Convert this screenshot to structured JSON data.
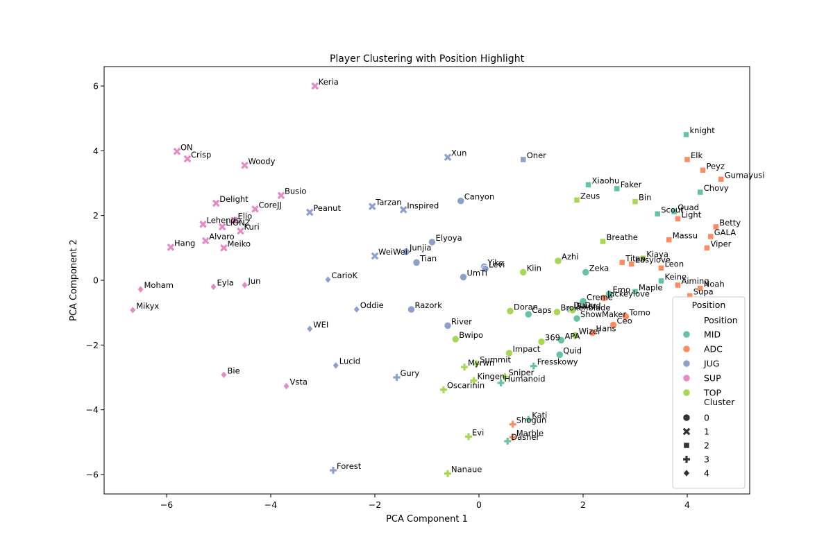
{
  "chart_data": {
    "type": "scatter",
    "title": "Player Clustering with Position Highlight",
    "xlabel": "PCA Component 1",
    "ylabel": "PCA Component 2",
    "xlim": [
      -7.2,
      5.2
    ],
    "ylim": [
      -6.6,
      6.6
    ],
    "xticks": [
      -6,
      -4,
      -2,
      0,
      2,
      4
    ],
    "yticks": [
      -6,
      -4,
      -2,
      0,
      2,
      4,
      6
    ],
    "grid": false,
    "legend_placement": "lower-right",
    "legend": {
      "hue_title": "Position",
      "hue": [
        {
          "label": "MID",
          "color": "#66c2a5"
        },
        {
          "label": "ADC",
          "color": "#fc8d62"
        },
        {
          "label": "JUG",
          "color": "#8da0cb"
        },
        {
          "label": "SUP",
          "color": "#e78ac3"
        },
        {
          "label": "TOP",
          "color": "#a6d854"
        }
      ],
      "style_title": "Cluster",
      "style": [
        {
          "label": "0",
          "marker": "circle"
        },
        {
          "label": "1",
          "marker": "x"
        },
        {
          "label": "2",
          "marker": "square"
        },
        {
          "label": "3",
          "marker": "plus"
        },
        {
          "label": "4",
          "marker": "diamond"
        }
      ]
    },
    "points": [
      {
        "name": "Keria",
        "x": -3.15,
        "y": 6.0,
        "position": "SUP",
        "cluster": "1"
      },
      {
        "name": "ON",
        "x": -5.8,
        "y": 3.98,
        "position": "SUP",
        "cluster": "1"
      },
      {
        "name": "Crisp",
        "x": -5.6,
        "y": 3.75,
        "position": "SUP",
        "cluster": "1"
      },
      {
        "name": "Woody",
        "x": -4.5,
        "y": 3.55,
        "position": "SUP",
        "cluster": "1"
      },
      {
        "name": "Busio",
        "x": -3.8,
        "y": 2.62,
        "position": "SUP",
        "cluster": "1"
      },
      {
        "name": "Delight",
        "x": -5.05,
        "y": 2.38,
        "position": "SUP",
        "cluster": "1"
      },
      {
        "name": "CoreJJ",
        "x": -4.3,
        "y": 2.2,
        "position": "SUP",
        "cluster": "1"
      },
      {
        "name": "Elio",
        "x": -4.7,
        "y": 1.85,
        "position": "SUP",
        "cluster": "1"
      },
      {
        "name": "Lehends",
        "x": -5.3,
        "y": 1.73,
        "position": "SUP",
        "cluster": "1"
      },
      {
        "name": "LIONZ",
        "x": -4.93,
        "y": 1.65,
        "position": "SUP",
        "cluster": "1"
      },
      {
        "name": "Kuri",
        "x": -4.58,
        "y": 1.52,
        "position": "SUP",
        "cluster": "1"
      },
      {
        "name": "Alvaro",
        "x": -5.25,
        "y": 1.22,
        "position": "SUP",
        "cluster": "1"
      },
      {
        "name": "Hang",
        "x": -5.92,
        "y": 1.02,
        "position": "SUP",
        "cluster": "1"
      },
      {
        "name": "Meiko",
        "x": -4.9,
        "y": 1.0,
        "position": "SUP",
        "cluster": "1"
      },
      {
        "name": "Moham",
        "x": -6.5,
        "y": -0.28,
        "position": "SUP",
        "cluster": "4"
      },
      {
        "name": "Eyla",
        "x": -5.1,
        "y": -0.2,
        "position": "SUP",
        "cluster": "4"
      },
      {
        "name": "Jun",
        "x": -4.5,
        "y": -0.15,
        "position": "SUP",
        "cluster": "4"
      },
      {
        "name": "Mikyx",
        "x": -6.65,
        "y": -0.92,
        "position": "SUP",
        "cluster": "4"
      },
      {
        "name": "Bie",
        "x": -4.9,
        "y": -2.92,
        "position": "SUP",
        "cluster": "4"
      },
      {
        "name": "Vsta",
        "x": -3.7,
        "y": -3.27,
        "position": "SUP",
        "cluster": "4"
      },
      {
        "name": "Xun",
        "x": -0.6,
        "y": 3.8,
        "position": "JUG",
        "cluster": "1"
      },
      {
        "name": "Oner",
        "x": 0.85,
        "y": 3.73,
        "position": "JUG",
        "cluster": "2"
      },
      {
        "name": "Tarzan",
        "x": -2.05,
        "y": 2.28,
        "position": "JUG",
        "cluster": "1"
      },
      {
        "name": "Inspired",
        "x": -1.45,
        "y": 2.18,
        "position": "JUG",
        "cluster": "1"
      },
      {
        "name": "Peanut",
        "x": -3.25,
        "y": 2.1,
        "position": "JUG",
        "cluster": "1"
      },
      {
        "name": "Canyon",
        "x": -0.35,
        "y": 2.45,
        "position": "JUG",
        "cluster": "0"
      },
      {
        "name": "Elyoya",
        "x": -0.9,
        "y": 1.18,
        "position": "JUG",
        "cluster": "0"
      },
      {
        "name": "Junjia",
        "x": -1.4,
        "y": 0.88,
        "position": "JUG",
        "cluster": "0"
      },
      {
        "name": "WeiWei",
        "x": -2.0,
        "y": 0.75,
        "position": "JUG",
        "cluster": "1"
      },
      {
        "name": "Tian",
        "x": -1.2,
        "y": 0.55,
        "position": "JUG",
        "cluster": "0"
      },
      {
        "name": "Yike",
        "x": 0.1,
        "y": 0.42,
        "position": "JUG",
        "cluster": "0"
      },
      {
        "name": "Levi",
        "x": 0.12,
        "y": 0.35,
        "position": "JUG",
        "cluster": "0"
      },
      {
        "name": "UmTi",
        "x": -0.3,
        "y": 0.1,
        "position": "JUG",
        "cluster": "0"
      },
      {
        "name": "CarioK",
        "x": -2.9,
        "y": 0.02,
        "position": "JUG",
        "cluster": "4"
      },
      {
        "name": "Oddie",
        "x": -2.35,
        "y": -0.9,
        "position": "JUG",
        "cluster": "4"
      },
      {
        "name": "Razork",
        "x": -1.3,
        "y": -0.9,
        "position": "JUG",
        "cluster": "0"
      },
      {
        "name": "WEI",
        "x": -3.25,
        "y": -1.5,
        "position": "JUG",
        "cluster": "4"
      },
      {
        "name": "River",
        "x": -0.6,
        "y": -1.4,
        "position": "JUG",
        "cluster": "0"
      },
      {
        "name": "Lucid",
        "x": -2.75,
        "y": -2.63,
        "position": "JUG",
        "cluster": "4"
      },
      {
        "name": "Gury",
        "x": -1.58,
        "y": -3.0,
        "position": "JUG",
        "cluster": "3"
      },
      {
        "name": "Forest",
        "x": -2.8,
        "y": -5.87,
        "position": "JUG",
        "cluster": "3"
      },
      {
        "name": "DuDu",
        "x": 1.75,
        "y": -0.9,
        "position": "JUG",
        "cluster": "0"
      },
      {
        "name": "knight",
        "x": 3.98,
        "y": 4.5,
        "position": "MID",
        "cluster": "2"
      },
      {
        "name": "Xiaohu",
        "x": 2.1,
        "y": 2.95,
        "position": "MID",
        "cluster": "2"
      },
      {
        "name": "Faker",
        "x": 2.65,
        "y": 2.83,
        "position": "MID",
        "cluster": "2"
      },
      {
        "name": "Chovy",
        "x": 4.25,
        "y": 2.72,
        "position": "MID",
        "cluster": "2"
      },
      {
        "name": "Scout",
        "x": 3.43,
        "y": 2.05,
        "position": "MID",
        "cluster": "2"
      },
      {
        "name": "Quad",
        "x": 3.75,
        "y": 2.12,
        "position": "MID",
        "cluster": "2"
      },
      {
        "name": "Zeka",
        "x": 2.05,
        "y": 0.25,
        "position": "MID",
        "cluster": "0"
      },
      {
        "name": "Keine",
        "x": 3.5,
        "y": -0.02,
        "position": "MID",
        "cluster": "2"
      },
      {
        "name": "Maple",
        "x": 3.0,
        "y": -0.35,
        "position": "MID",
        "cluster": "2"
      },
      {
        "name": "Emo",
        "x": 2.5,
        "y": -0.42,
        "position": "MID",
        "cluster": "0"
      },
      {
        "name": "Creme",
        "x": 2.0,
        "y": -0.65,
        "position": "MID",
        "cluster": "0"
      },
      {
        "name": "Caps",
        "x": 0.95,
        "y": -1.05,
        "position": "MID",
        "cluster": "0"
      },
      {
        "name": "ShowMaker",
        "x": 1.88,
        "y": -1.18,
        "position": "MID",
        "cluster": "0"
      },
      {
        "name": "APA",
        "x": 1.58,
        "y": -1.85,
        "position": "MID",
        "cluster": "0"
      },
      {
        "name": "Quid",
        "x": 1.55,
        "y": -2.3,
        "position": "MID",
        "cluster": "0"
      },
      {
        "name": "Fresskowy",
        "x": 1.05,
        "y": -2.65,
        "position": "MID",
        "cluster": "3"
      },
      {
        "name": "Humanoid",
        "x": 0.42,
        "y": -3.17,
        "position": "MID",
        "cluster": "3"
      },
      {
        "name": "Kati",
        "x": 0.95,
        "y": -4.3,
        "position": "MID",
        "cluster": "3"
      },
      {
        "name": "Dasher",
        "x": 0.55,
        "y": -4.97,
        "position": "MID",
        "cluster": "3"
      },
      {
        "name": "Elk",
        "x": 4.0,
        "y": 3.73,
        "position": "ADC",
        "cluster": "2"
      },
      {
        "name": "Peyz",
        "x": 4.3,
        "y": 3.4,
        "position": "ADC",
        "cluster": "2"
      },
      {
        "name": "Gumayusi",
        "x": 4.65,
        "y": 3.12,
        "position": "ADC",
        "cluster": "2"
      },
      {
        "name": "Light",
        "x": 3.82,
        "y": 1.9,
        "position": "ADC",
        "cluster": "2"
      },
      {
        "name": "Betty",
        "x": 4.55,
        "y": 1.65,
        "position": "ADC",
        "cluster": "2"
      },
      {
        "name": "GALA",
        "x": 4.45,
        "y": 1.35,
        "position": "ADC",
        "cluster": "2"
      },
      {
        "name": "Massu",
        "x": 3.65,
        "y": 1.25,
        "position": "ADC",
        "cluster": "2"
      },
      {
        "name": "Viper",
        "x": 4.38,
        "y": 1.0,
        "position": "ADC",
        "cluster": "2"
      },
      {
        "name": "Titan",
        "x": 2.75,
        "y": 0.55,
        "position": "ADC",
        "cluster": "2"
      },
      {
        "name": "Easylove",
        "x": 2.93,
        "y": 0.5,
        "position": "ADC",
        "cluster": "2"
      },
      {
        "name": "Leon",
        "x": 3.5,
        "y": 0.38,
        "position": "ADC",
        "cluster": "2"
      },
      {
        "name": "Aiming",
        "x": 3.82,
        "y": -0.15,
        "position": "ADC",
        "cluster": "2"
      },
      {
        "name": "Noah",
        "x": 4.25,
        "y": -0.25,
        "position": "ADC",
        "cluster": "2"
      },
      {
        "name": "Supa",
        "x": 4.05,
        "y": -0.48,
        "position": "ADC",
        "cluster": "2"
      },
      {
        "name": "Jackeylove",
        "x": 2.4,
        "y": -0.55,
        "position": "ADC",
        "cluster": "0"
      },
      {
        "name": "Tomo",
        "x": 2.82,
        "y": -1.12,
        "position": "ADC",
        "cluster": "0"
      },
      {
        "name": "Ceo",
        "x": 2.58,
        "y": -1.38,
        "position": "ADC",
        "cluster": "0"
      },
      {
        "name": "Hans",
        "x": 2.18,
        "y": -1.62,
        "position": "ADC",
        "cluster": "0"
      },
      {
        "name": "Shogun",
        "x": 0.65,
        "y": -4.45,
        "position": "ADC",
        "cluster": "3"
      },
      {
        "name": "Marble",
        "x": 0.65,
        "y": -4.85,
        "position": "ADC",
        "cluster": "3"
      },
      {
        "name": "Zeus",
        "x": 1.88,
        "y": 2.48,
        "position": "TOP",
        "cluster": "2"
      },
      {
        "name": "Bin",
        "x": 3.0,
        "y": 2.43,
        "position": "TOP",
        "cluster": "2"
      },
      {
        "name": "Breathe",
        "x": 2.38,
        "y": 1.2,
        "position": "TOP",
        "cluster": "2"
      },
      {
        "name": "Kiaya",
        "x": 3.15,
        "y": 0.68,
        "position": "TOP",
        "cluster": "2"
      },
      {
        "name": "Azhi",
        "x": 1.52,
        "y": 0.6,
        "position": "TOP",
        "cluster": "0"
      },
      {
        "name": "Kiin",
        "x": 0.85,
        "y": 0.25,
        "position": "TOP",
        "cluster": "0"
      },
      {
        "name": "Doran",
        "x": 0.6,
        "y": -0.95,
        "position": "TOP",
        "cluster": "0"
      },
      {
        "name": "Brokenblade",
        "x": 1.5,
        "y": -0.98,
        "position": "TOP",
        "cluster": "0"
      },
      {
        "name": "Sword",
        "x": 1.8,
        "y": -0.92,
        "position": "TOP",
        "cluster": "0"
      },
      {
        "name": "Wizer",
        "x": 1.85,
        "y": -1.7,
        "position": "TOP",
        "cluster": "0"
      },
      {
        "name": "369",
        "x": 1.2,
        "y": -1.9,
        "position": "TOP",
        "cluster": "0"
      },
      {
        "name": "Bwipo",
        "x": -0.45,
        "y": -1.82,
        "position": "TOP",
        "cluster": "0"
      },
      {
        "name": "Impact",
        "x": 0.58,
        "y": -2.25,
        "position": "TOP",
        "cluster": "0"
      },
      {
        "name": "Summit",
        "x": -0.05,
        "y": -2.58,
        "position": "TOP",
        "cluster": "3"
      },
      {
        "name": "Myrwn",
        "x": -0.28,
        "y": -2.68,
        "position": "TOP",
        "cluster": "3"
      },
      {
        "name": "Sniper",
        "x": 0.5,
        "y": -2.98,
        "position": "TOP",
        "cluster": "3"
      },
      {
        "name": "Kingen",
        "x": -0.1,
        "y": -3.1,
        "position": "TOP",
        "cluster": "3"
      },
      {
        "name": "Oscarinin",
        "x": -0.68,
        "y": -3.38,
        "position": "TOP",
        "cluster": "3"
      },
      {
        "name": "Evi",
        "x": -0.2,
        "y": -4.83,
        "position": "TOP",
        "cluster": "3"
      },
      {
        "name": "Nanaue",
        "x": -0.6,
        "y": -5.97,
        "position": "TOP",
        "cluster": "3"
      }
    ]
  }
}
